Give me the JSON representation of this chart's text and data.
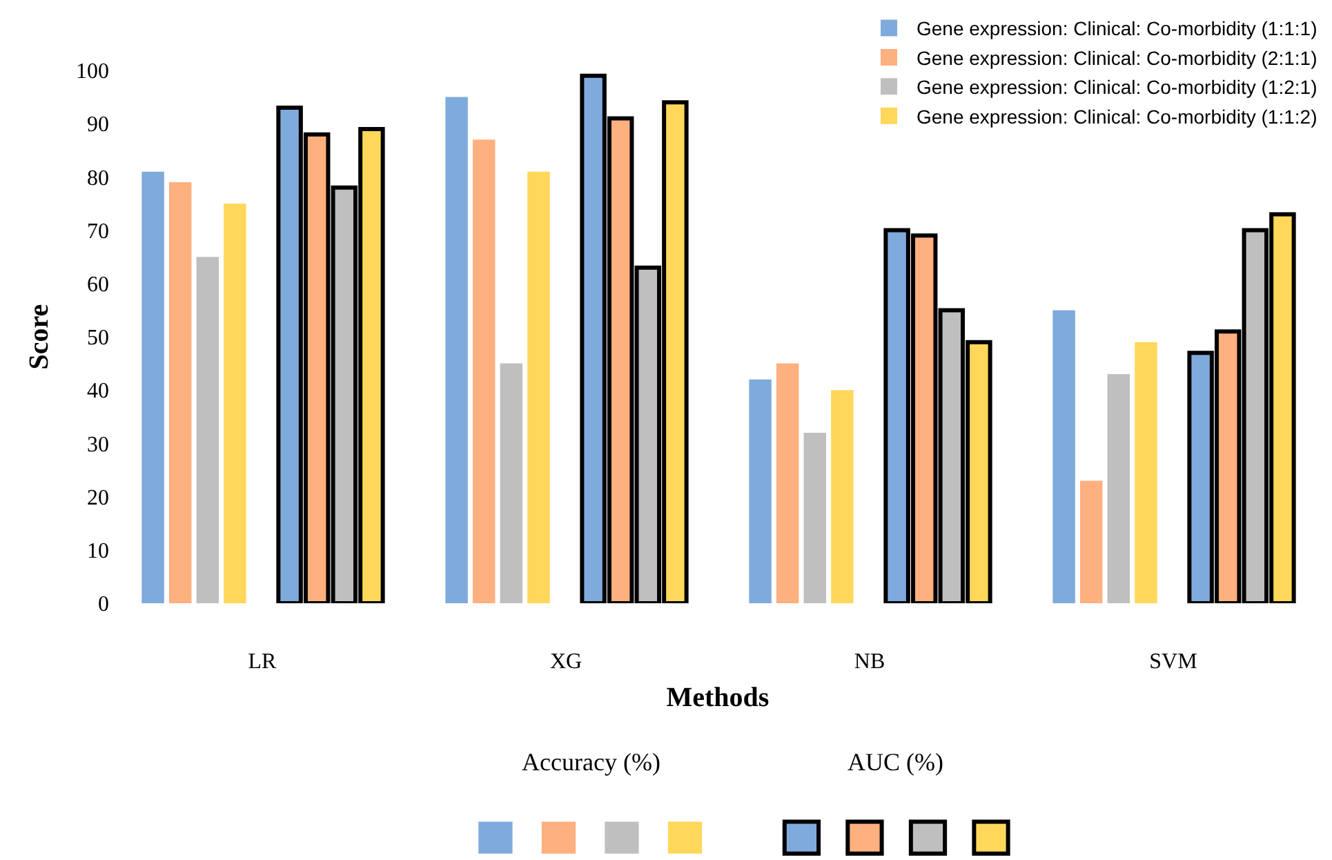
{
  "chart_data": {
    "type": "bar",
    "xlabel": "Methods",
    "ylabel": "Score",
    "categories": [
      "LR",
      "XG",
      "NB",
      "SVM"
    ],
    "series": [
      {
        "name": "Gene expression: Clinical: Co-morbidity (1:1:1)",
        "color": "#7faadc",
        "values": [
          81,
          95,
          42,
          55
        ]
      },
      {
        "name": "Gene expression: Clinical: Co-morbidity (2:1:1)",
        "color": "#ffb07f",
        "values": [
          79,
          87,
          45,
          23
        ]
      },
      {
        "name": "Gene expression: Clinical: Co-morbidity (1:2:1)",
        "color": "#bfbfbf",
        "values": [
          65,
          45,
          32,
          43
        ]
      },
      {
        "name": "Gene expression: Clinical: Co-morbidity (1:1:2)",
        "color": "#ffd75a",
        "values": [
          75,
          81,
          40,
          49
        ]
      },
      {
        "color": "#7faadc",
        "values": [
          93,
          99,
          70,
          47
        ]
      },
      {
        "color": "#ffb07f",
        "values": [
          88,
          91,
          69,
          51
        ]
      },
      {
        "color": "#bfbfbf",
        "values": [
          78,
          63,
          55,
          70
        ]
      },
      {
        "color": "#ffd75a",
        "values": [
          89,
          94,
          49,
          73
        ]
      }
    ],
    "annotations": [
      "Accuracy (%)",
      "AUC (%)"
    ],
    "ylim": [
      0,
      100
    ],
    "yticks": [
      0,
      10,
      20,
      30,
      40,
      50,
      60,
      70,
      80,
      90,
      100
    ],
    "legend": "top right"
  }
}
